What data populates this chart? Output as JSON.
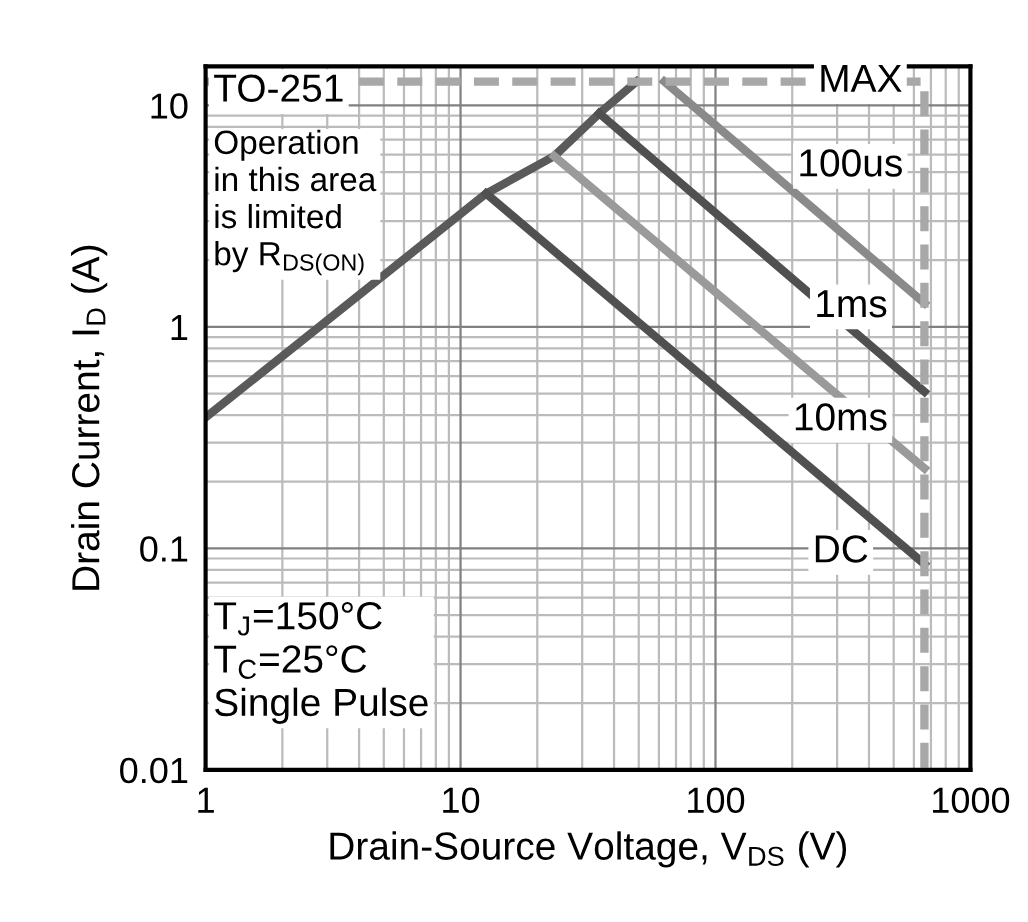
{
  "chart_data": {
    "type": "line",
    "xlabel": "Drain-Source Voltage, V$_{DS}$ (V)",
    "ylabel": "Drain Current, I$_{D}$ (A)",
    "log": "xy",
    "xlim": [
      1,
      1000
    ],
    "ylim": [
      0.01,
      15
    ],
    "xticks": [
      1,
      10,
      100,
      1000
    ],
    "yticks": [
      0.01,
      0.1,
      1,
      10
    ],
    "grid": true,
    "marker": "none",
    "series": [
      {
        "x": [
          1,
          12.6,
          23.3,
          35,
          49
        ],
        "values": [
          0.39,
          4.0,
          5.9,
          9.2,
          12.8
        ],
        "color": "#5a5a5a"
      },
      {
        "x": [
          12.6,
          660
        ],
        "values": [
          4.0,
          0.085
        ],
        "color": "#505050"
      },
      {
        "x": [
          23.3,
          660
        ],
        "values": [
          5.9,
          0.23
        ],
        "color": "#9a9a9a"
      },
      {
        "x": [
          35,
          660
        ],
        "values": [
          9.2,
          0.51
        ],
        "color": "#505050"
      },
      {
        "x": [
          63,
          660
        ],
        "values": [
          12.8,
          1.28
        ],
        "color": "#8a8a8a"
      },
      {
        "x": [
          1,
          660,
          660
        ],
        "values": [
          12.8,
          12.8,
          0.01
        ],
        "color": "#a8a8a8",
        "line_style": "dashed"
      }
    ],
    "annotations": [
      "TO-251",
      "Operation\nin this area\nis limited\nby R$_{DS(ON)}$",
      "T$_{J}$=150°C\nT$_{C}$=25°C\nSingle Pulse",
      {
        "text": "MAX",
        "x": 370,
        "y": 12.8
      },
      "100us",
      {
        "text": "1ms",
        "x": 340,
        "y": 1.23
      },
      "10ms",
      {
        "text": "DC",
        "x": 310,
        "y": 0.096
      }
    ]
  }
}
